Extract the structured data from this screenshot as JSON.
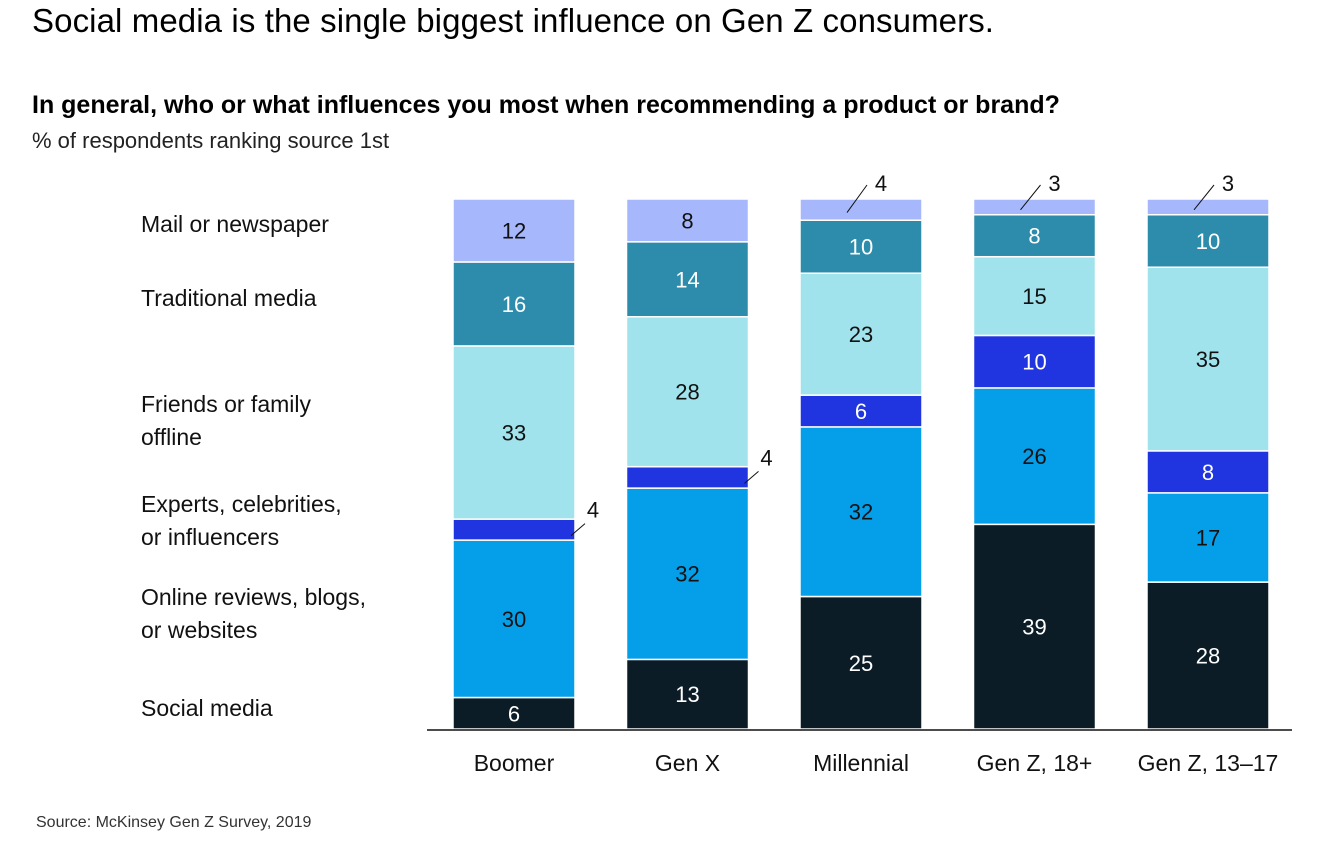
{
  "headline": "Social media is the single biggest influence on Gen Z consumers.",
  "chart_data": {
    "type": "bar",
    "stacked": true,
    "title": "In general, who or what influences you most when recommending a product or brand?",
    "subtitle": "% of respondents ranking source 1st",
    "categories": [
      "Boomer",
      "Gen X",
      "Millennial",
      "Gen Z, 18+",
      "Gen Z, 13–17"
    ],
    "series": [
      {
        "name": "Social media",
        "values": [
          6,
          13,
          25,
          39,
          28
        ],
        "color": "#0b1c27",
        "text_color": "#ffffff"
      },
      {
        "name": "Online reviews, blogs, or websites",
        "label_lines": [
          "Online reviews, blogs,",
          "or websites"
        ],
        "values": [
          30,
          32,
          32,
          26,
          17
        ],
        "color": "#059ee9",
        "text_color": "#111111"
      },
      {
        "name": "Experts, celebrities, or influencers",
        "label_lines": [
          "Experts, celebrities,",
          "or influencers"
        ],
        "values": [
          4,
          4,
          6,
          10,
          8
        ],
        "color": "#2035e0",
        "text_color": "#ffffff"
      },
      {
        "name": "Friends or family offline",
        "label_lines": [
          "Friends or family",
          "offline"
        ],
        "values": [
          33,
          28,
          23,
          15,
          35
        ],
        "color": "#a0e3ec",
        "text_color": "#111111"
      },
      {
        "name": "Traditional media",
        "label_lines": [
          "Traditional media"
        ],
        "values": [
          16,
          14,
          10,
          8,
          10
        ],
        "color": "#2d8cab",
        "text_color": "#ffffff"
      },
      {
        "name": "Mail or newspaper",
        "label_lines": [
          "Mail or newspaper"
        ],
        "values": [
          12,
          8,
          4,
          3,
          3
        ],
        "color": "#a6b7fb",
        "text_color": "#111111"
      }
    ],
    "legend": "left",
    "grid": false
  },
  "source": "Source: McKinsey Gen Z Survey, 2019"
}
